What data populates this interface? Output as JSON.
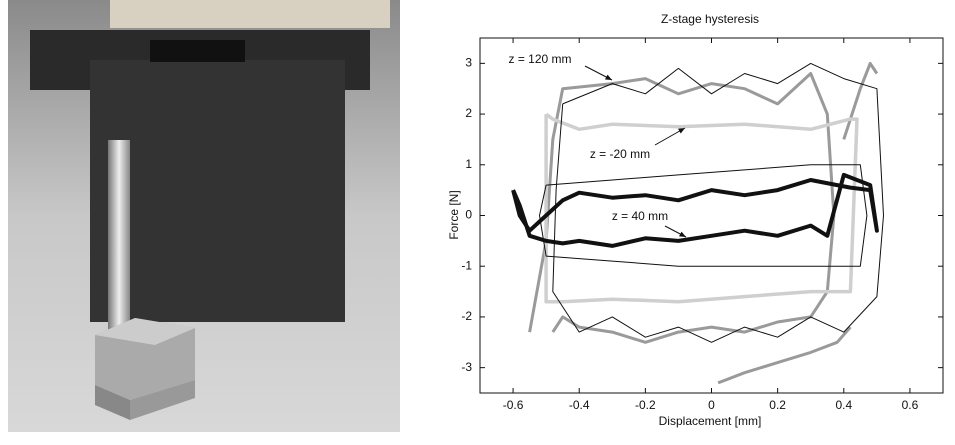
{
  "chart_data": {
    "type": "line",
    "title": "Z-stage hysteresis",
    "x_label": "Displacement [mm]",
    "y_label": "Force [N]",
    "xlim": [
      -0.7,
      0.7
    ],
    "ylim": [
      -3.5,
      3.5
    ],
    "xticks": [
      -0.6,
      -0.4,
      -0.2,
      0,
      0.2,
      0.4,
      0.6
    ],
    "yticks": [
      -3,
      -2,
      -1,
      0,
      1,
      2,
      3
    ],
    "annotations": [
      "z = 120 mm",
      "z = -20 mm",
      "z = 40 mm"
    ],
    "series": [
      {
        "color": "#9a9a9a",
        "x": [
          -0.55,
          -0.5,
          -0.48,
          -0.45,
          -0.3,
          -0.2,
          -0.1,
          0,
          0.1,
          0.2,
          0.3,
          0.35,
          0.37,
          0.35,
          0.3,
          0.2,
          0.1,
          0,
          -0.1,
          -0.2,
          -0.3,
          -0.4,
          -0.45,
          -0.48
        ],
        "values": [
          -2.3,
          -0.5,
          1.5,
          2.5,
          2.6,
          2.7,
          2.4,
          2.6,
          2.5,
          2.2,
          2.8,
          2.0,
          0,
          -1.5,
          -2,
          -2.1,
          -2.3,
          -2.2,
          -2.3,
          -2.5,
          -2.3,
          -2.2,
          -2.0,
          -2.3
        ]
      },
      {
        "color": "#9a9a9a",
        "x": [
          0.02,
          0.1,
          0.2,
          0.3,
          0.38,
          0.42
        ],
        "values": [
          -3.3,
          -3.1,
          -2.9,
          -2.7,
          -2.5,
          -2.2
        ]
      },
      {
        "color": "#9a9a9a",
        "x": [
          0.4,
          0.45,
          0.48,
          0.5
        ],
        "values": [
          1.5,
          2.5,
          3.0,
          2.8
        ]
      },
      {
        "color": "#cfcfcf",
        "x": [
          -0.5,
          -0.5,
          -0.45,
          -0.3,
          -0.1,
          0.1,
          0.3,
          0.42,
          0.44,
          0.42,
          0.3,
          0.1,
          -0.1,
          -0.3,
          -0.4,
          -0.48,
          -0.5
        ],
        "values": [
          2,
          -1.7,
          -1.7,
          -1.65,
          -1.7,
          -1.6,
          -1.5,
          -1.5,
          1.9,
          1.9,
          1.7,
          1.8,
          1.75,
          1.8,
          1.7,
          1.9,
          2
        ]
      },
      {
        "color": "#111111",
        "x": [
          -0.6,
          -0.58,
          -0.55,
          -0.5,
          -0.45,
          -0.4,
          -0.3,
          -0.2,
          -0.1,
          0,
          0.1,
          0.2,
          0.3,
          0.35,
          0.4,
          0.48,
          0.5,
          0.48,
          0.42,
          0.38,
          0.3,
          0.2,
          0.1,
          0,
          -0.1,
          -0.2,
          -0.3,
          -0.4,
          -0.45,
          -0.5,
          -0.55,
          -0.58,
          -0.6
        ],
        "values": [
          0.5,
          0.2,
          -0.4,
          -0.5,
          -0.55,
          -0.5,
          -0.6,
          -0.45,
          -0.5,
          -0.4,
          -0.3,
          -0.4,
          -0.2,
          -0.4,
          0.8,
          0.6,
          -0.3,
          0.5,
          0.55,
          0.6,
          0.7,
          0.5,
          0.4,
          0.5,
          0.3,
          0.4,
          0.35,
          0.45,
          0.3,
          0.0,
          -0.3,
          0.0,
          0.5
        ]
      },
      {
        "color": "#111111",
        "x": [
          -0.5,
          -0.3,
          -0.1,
          0.1,
          0.3,
          0.45,
          0.47,
          0.45,
          0.3,
          0.1,
          -0.1,
          -0.3,
          -0.5,
          -0.52,
          -0.5
        ],
        "values": [
          0.6,
          0.7,
          0.8,
          0.9,
          1.0,
          1.0,
          0,
          -1.0,
          -1.0,
          -1.0,
          -1.0,
          -0.9,
          -0.8,
          0,
          0.6
        ]
      },
      {
        "color": "#111111",
        "x": [
          -0.45,
          -0.3,
          -0.2,
          -0.1,
          0,
          0.1,
          0.2,
          0.3,
          0.4,
          0.5,
          0.52,
          0.5,
          0.4,
          0.3,
          0.2,
          0.1,
          0,
          -0.1,
          -0.2,
          -0.3,
          -0.4,
          -0.48,
          -0.47,
          -0.45
        ],
        "values": [
          2.2,
          2.6,
          2.4,
          2.9,
          2.4,
          2.8,
          2.6,
          3.0,
          2.7,
          2.5,
          0,
          -1.6,
          -2.3,
          -2.0,
          -2.4,
          -2.2,
          -2.5,
          -2.2,
          -2.4,
          -2.0,
          -2.3,
          -1.5,
          0.5,
          2.2
        ]
      }
    ]
  }
}
